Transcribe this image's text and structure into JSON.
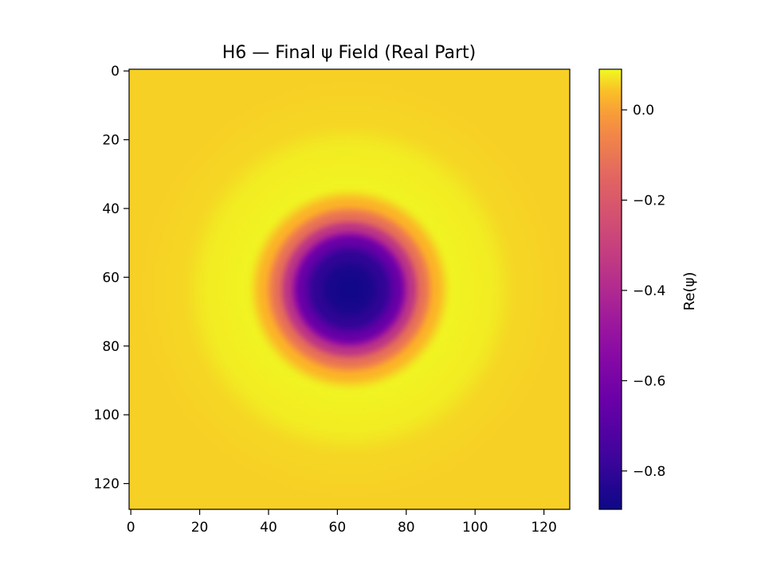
{
  "chart_data": {
    "type": "heatmap",
    "title": "H6 — Final ψ Field (Real Part)",
    "colormap": "plasma",
    "grid": false,
    "x_range": [
      -0.5,
      127.5
    ],
    "y_range": [
      127.5,
      -0.5
    ],
    "x_ticks": [
      0,
      20,
      40,
      60,
      80,
      100,
      120
    ],
    "y_ticks": [
      0,
      20,
      40,
      60,
      80,
      100,
      120
    ],
    "x_tick_labels": [
      "0",
      "20",
      "40",
      "60",
      "80",
      "100",
      "120"
    ],
    "y_tick_labels": [
      "0",
      "20",
      "40",
      "60",
      "80",
      "100",
      "120"
    ],
    "field": {
      "shape": "radial",
      "center": [
        63.5,
        63.5
      ],
      "profile_radius": [
        0,
        5,
        10,
        14,
        18,
        21,
        25,
        30,
        40,
        50,
        64,
        91
      ],
      "profile_value": [
        -0.88,
        -0.86,
        -0.8,
        -0.65,
        -0.35,
        -0.12,
        0.03,
        0.085,
        0.08,
        0.06,
        0.055,
        0.055
      ]
    },
    "colorbar": {
      "label": "Re(ψ)",
      "range": [
        -0.885,
        0.09
      ],
      "ticks": [
        0.0,
        -0.2,
        -0.4,
        -0.6,
        -0.8
      ],
      "tick_labels": [
        "0.0",
        "−0.2",
        "−0.4",
        "−0.6",
        "−0.8"
      ]
    }
  }
}
